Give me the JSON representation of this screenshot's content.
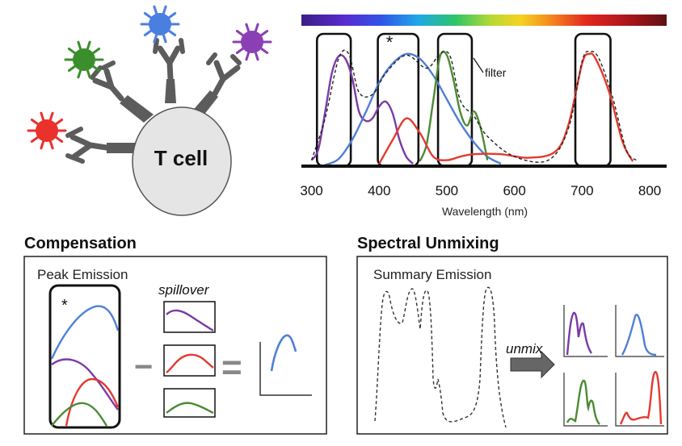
{
  "tcell": {
    "label": "T cell",
    "fluor_colors": [
      "#e8322b",
      "#3a8f2c",
      "#4a7fe0",
      "#8b3fb5"
    ]
  },
  "chart_data": {
    "type": "line",
    "xlabel": "Wavelength (nm)",
    "xlim": [
      285,
      825
    ],
    "x_ticks": [
      "300",
      "400",
      "500",
      "600",
      "700",
      "800"
    ],
    "x_tick_values": [
      300,
      400,
      500,
      600,
      700,
      800
    ],
    "ylim": [
      0,
      1
    ],
    "filter_label": "filter",
    "asterisk": "*",
    "filter_windows": [
      [
        308,
        358
      ],
      [
        398,
        458
      ],
      [
        487,
        537
      ],
      [
        690,
        742
      ]
    ],
    "series": [
      {
        "name": "violet",
        "color": "#7a3aa8",
        "x": [
          300,
          310,
          320,
          330,
          340,
          350,
          360,
          370,
          380,
          390,
          400,
          410,
          420,
          430,
          440,
          450
        ],
        "y": [
          0.05,
          0.14,
          0.45,
          0.78,
          0.92,
          0.9,
          0.74,
          0.46,
          0.38,
          0.4,
          0.5,
          0.54,
          0.44,
          0.22,
          0.08,
          0.02
        ]
      },
      {
        "name": "blue",
        "color": "#4f7fd6",
        "x": [
          320,
          340,
          360,
          380,
          400,
          420,
          440,
          460,
          480,
          500,
          520,
          540,
          560,
          580
        ],
        "y": [
          0.01,
          0.06,
          0.22,
          0.45,
          0.7,
          0.86,
          0.94,
          0.9,
          0.76,
          0.56,
          0.36,
          0.2,
          0.08,
          0.02
        ]
      },
      {
        "name": "green",
        "color": "#4b8a34",
        "x": [
          460,
          470,
          480,
          490,
          500,
          510,
          520,
          530,
          540,
          550,
          560
        ],
        "y": [
          0.04,
          0.18,
          0.55,
          0.92,
          0.93,
          0.72,
          0.45,
          0.34,
          0.46,
          0.32,
          0.05
        ]
      },
      {
        "name": "red",
        "color": "#e43a30",
        "x": [
          400,
          420,
          440,
          460,
          480,
          500,
          520,
          540,
          580,
          620,
          660,
          680,
          700,
          710,
          720,
          740,
          760,
          775
        ],
        "y": [
          0.02,
          0.22,
          0.4,
          0.28,
          0.08,
          0.05,
          0.08,
          0.1,
          0.1,
          0.07,
          0.12,
          0.35,
          0.86,
          0.94,
          0.9,
          0.62,
          0.2,
          0.04
        ]
      },
      {
        "name": "summary",
        "color": "#222222",
        "dashed": true,
        "x": [
          300,
          320,
          340,
          355,
          370,
          390,
          410,
          440,
          470,
          490,
          505,
          520,
          540,
          560,
          600,
          650,
          680,
          700,
          712,
          725,
          745,
          765,
          780
        ],
        "y": [
          0.05,
          0.4,
          0.9,
          0.94,
          0.62,
          0.6,
          0.78,
          0.93,
          0.82,
          0.94,
          0.92,
          0.55,
          0.42,
          0.25,
          0.08,
          0.05,
          0.32,
          0.88,
          0.96,
          0.9,
          0.58,
          0.14,
          0.05
        ]
      }
    ]
  },
  "compensation": {
    "title": "Compensation",
    "subtitle": "Peak Emission",
    "spillover_label": "spillover",
    "asterisk": "*",
    "minus": "−",
    "equals": "="
  },
  "unmixing": {
    "title": "Spectral Unmixing",
    "subtitle": "Summary Emission",
    "arrow_label": "unmix"
  }
}
